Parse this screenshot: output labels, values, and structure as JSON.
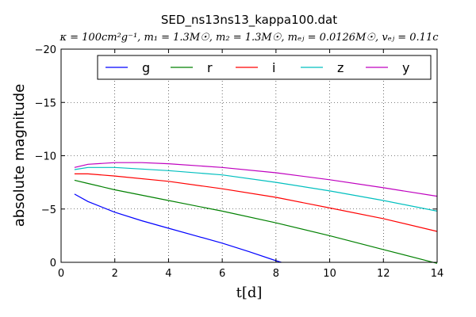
{
  "chart_data": {
    "type": "line",
    "title": "SED_ns13ns13_kappa100.dat",
    "subtitle": "κ = 100cm²g⁻¹, m₁ = 1.3M☉, m₂ = 1.3M☉, mₑⱼ = 0.0126M☉, vₑⱼ = 0.11c",
    "xlabel": "t[d]",
    "ylabel": "absolute magnitude",
    "xlim": [
      0,
      14
    ],
    "ylim": [
      0,
      -20
    ],
    "y_inverted": true,
    "xticks": [
      "0",
      "2",
      "4",
      "6",
      "8",
      "10",
      "12",
      "14"
    ],
    "yticks": [
      "0",
      "−5",
      "−10",
      "−15",
      "−20"
    ],
    "grid": true,
    "legend_position": "top",
    "series": [
      {
        "name": "g",
        "color": "#0000ff",
        "x": [
          0.5,
          1,
          2,
          3,
          4,
          5,
          6,
          7,
          8,
          8.2
        ],
        "y": [
          -6.4,
          -5.7,
          -4.7,
          -3.9,
          -3.2,
          -2.5,
          -1.8,
          -1.0,
          -0.15,
          0
        ]
      },
      {
        "name": "r",
        "color": "#008000",
        "x": [
          0.5,
          1,
          2,
          4,
          6,
          8,
          10,
          12,
          14
        ],
        "y": [
          -7.7,
          -7.4,
          -6.8,
          -5.8,
          -4.8,
          -3.7,
          -2.5,
          -1.2,
          0.1
        ]
      },
      {
        "name": "i",
        "color": "#ff0000",
        "x": [
          0.5,
          1,
          2,
          4,
          6,
          8,
          10,
          12,
          14
        ],
        "y": [
          -8.3,
          -8.3,
          -8.1,
          -7.6,
          -6.9,
          -6.1,
          -5.1,
          -4.1,
          -2.9
        ]
      },
      {
        "name": "z",
        "color": "#00bfbf",
        "x": [
          0.5,
          1,
          2,
          4,
          6,
          8,
          10,
          12,
          14
        ],
        "y": [
          -8.7,
          -8.9,
          -8.9,
          -8.6,
          -8.2,
          -7.5,
          -6.7,
          -5.8,
          -4.8
        ]
      },
      {
        "name": "y",
        "color": "#bf00bf",
        "x": [
          0.5,
          1,
          2,
          3,
          4,
          6,
          8,
          10,
          12,
          14
        ],
        "y": [
          -8.9,
          -9.2,
          -9.35,
          -9.35,
          -9.25,
          -8.9,
          -8.4,
          -7.75,
          -7.0,
          -6.2
        ]
      }
    ]
  }
}
